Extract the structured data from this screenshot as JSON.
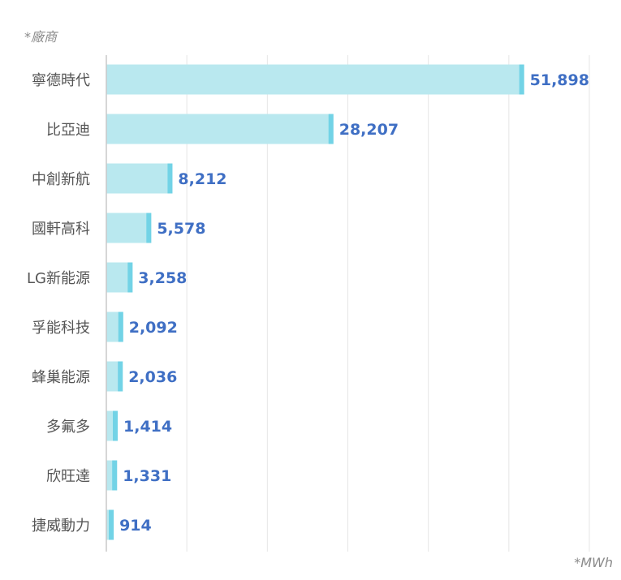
{
  "chart_data": {
    "type": "bar",
    "orientation": "horizontal",
    "y_axis_title": "*廠商",
    "unit_label": "*MWh",
    "categories": [
      "寧德時代",
      "比亞迪",
      "中創新航",
      "國軒高科",
      "LG新能源",
      "孚能科技",
      "蜂巢能源",
      "多氟多",
      "欣旺達",
      "捷威動力"
    ],
    "values": [
      51898,
      28207,
      8212,
      5578,
      3258,
      2092,
      2036,
      1414,
      1331,
      914
    ],
    "value_labels": [
      "51,898",
      "28,207",
      "8,212",
      "5,578",
      "3,258",
      "2,092",
      "2,036",
      "1,414",
      "1,331",
      "914"
    ],
    "xlim": [
      0,
      60000
    ],
    "x_gridlines": [
      0,
      10000,
      20000,
      30000,
      40000,
      50000,
      60000
    ],
    "x_tick_labels_visible": false,
    "grid": "vertical",
    "colors": {
      "bar_fill": "#b9e8ef",
      "bar_cap": "#72d3e6",
      "value_text": "#3f6fc4",
      "category_text": "#555555",
      "grid": "#e6e6e6",
      "axis": "#c8c8c8"
    }
  }
}
